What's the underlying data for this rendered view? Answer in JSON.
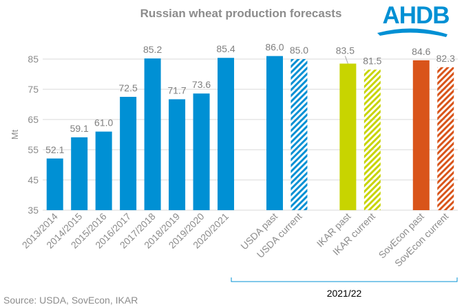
{
  "logo": {
    "text": "AHDB",
    "color": "#0090d4"
  },
  "source": "Source: USDA, SovEcon, IKAR",
  "chart_data": {
    "type": "bar",
    "title": "Russian wheat production forecasts",
    "ylabel": "Mt",
    "xlabel": "",
    "ylim": [
      35,
      90
    ],
    "yticks": [
      35,
      45,
      55,
      65,
      75,
      85
    ],
    "grid": true,
    "group_label": "2021/22",
    "categories": [
      "2013/2014",
      "2014/2015",
      "2015/2016",
      "2016/2017",
      "2017/2018",
      "2018/2019",
      "2019/2020",
      "2020/2021",
      "",
      "USDA past",
      "USDA current",
      "",
      "IKAR past",
      "IKAR current",
      "",
      "SovEcon past",
      "SovEcon current"
    ],
    "values": [
      52.1,
      59.1,
      61.0,
      72.5,
      85.2,
      71.7,
      73.6,
      85.4,
      null,
      86.0,
      85.0,
      null,
      83.5,
      81.5,
      null,
      84.6,
      82.3
    ],
    "labels": [
      "52.1",
      "59.1",
      "61.0",
      "72.5",
      "85.2",
      "71.7",
      "73.6",
      "85.4",
      "",
      "86.0",
      "85.0",
      "",
      "83.5",
      "81.5",
      "",
      "84.6",
      "82.3"
    ],
    "colors": [
      "#0090d4",
      "#0090d4",
      "#0090d4",
      "#0090d4",
      "#0090d4",
      "#0090d4",
      "#0090d4",
      "#0090d4",
      "",
      "#0090d4",
      "#0090d4",
      "",
      "#c8d400",
      "#c8d400",
      "",
      "#d9541a",
      "#d9541a"
    ],
    "hatched": [
      false,
      false,
      false,
      false,
      false,
      false,
      false,
      false,
      false,
      false,
      true,
      false,
      false,
      true,
      false,
      false,
      true
    ]
  }
}
